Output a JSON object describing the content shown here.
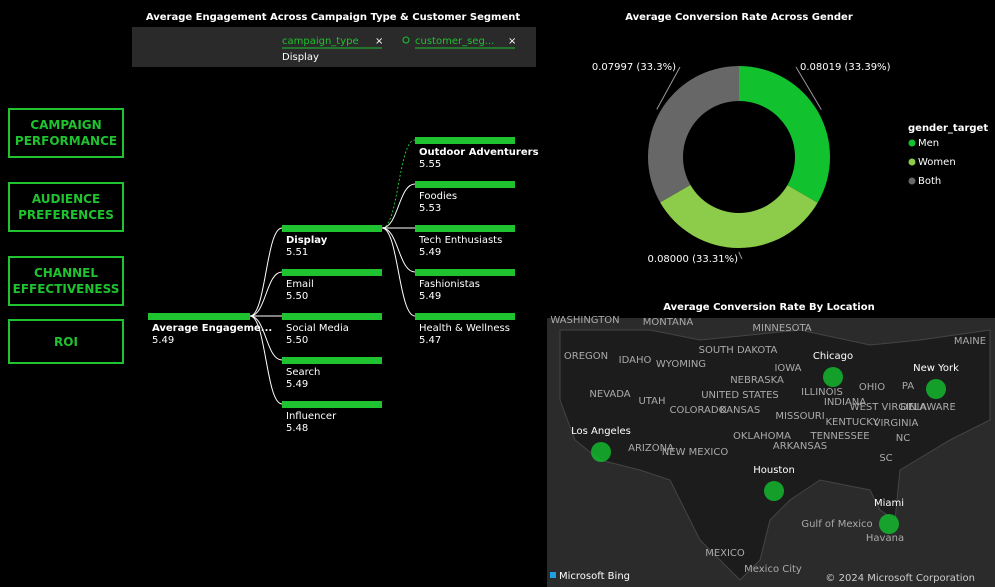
{
  "nav": [
    "CAMPAIGN PERFORMANCE",
    "AUDIENCE PREFERENCES",
    "CHANNEL EFFECTIVENESS",
    "ROI"
  ],
  "tree": {
    "title": "Average Engagement Across Campaign Type & Customer Segment",
    "filters": [
      {
        "field": "campaign_type",
        "value": "Display"
      },
      {
        "field": "customer_seg..."
      }
    ],
    "root": {
      "label": "Average Engageme...",
      "value": "5.49"
    },
    "level1": [
      {
        "label": "Display",
        "value": "5.51"
      },
      {
        "label": "Email",
        "value": "5.50"
      },
      {
        "label": "Social Media",
        "value": "5.50"
      },
      {
        "label": "Search",
        "value": "5.49"
      },
      {
        "label": "Influencer",
        "value": "5.48"
      }
    ],
    "level2": [
      {
        "label": "Outdoor Adventurers",
        "value": "5.55"
      },
      {
        "label": "Foodies",
        "value": "5.53"
      },
      {
        "label": "Tech Enthusiasts",
        "value": "5.49"
      },
      {
        "label": "Fashionistas",
        "value": "5.49"
      },
      {
        "label": "Health & Wellness",
        "value": "5.47"
      }
    ]
  },
  "chart_data": {
    "type": "pie",
    "title": "Average Conversion Rate Across Gender",
    "legend_title": "gender_target",
    "categories": [
      "Men",
      "Women",
      "Both"
    ],
    "values": [
      0.08019,
      0.08,
      0.07997
    ],
    "value_labels": [
      "0.08019 (33.39%)",
      "0.08000 (33.31%)",
      "0.07997 (33.3%)"
    ],
    "colors": [
      "#12c12e",
      "#8ccc4a",
      "#676767"
    ]
  },
  "map": {
    "title": "Average Conversion Rate By Location",
    "cities": [
      "Chicago",
      "New York",
      "Los Angeles",
      "Houston",
      "Miami"
    ],
    "labels": [
      "WASHINGTON",
      "MONTANA",
      "MINNESOTA",
      "OREGON",
      "IDAHO",
      "WYOMING",
      "SOUTH DAKOTA",
      "NEBRASKA",
      "IOWA",
      "NEVADA",
      "UTAH",
      "UNITED STATES",
      "COLORADO",
      "KANSAS",
      "MISSOURI",
      "ILLINOIS",
      "INDIANA",
      "OHIO",
      "PA",
      "WEST VIRGINIA",
      "DELAWARE",
      "KENTUCKY",
      "VIRGINIA",
      "TENNESSEE",
      "NC",
      "SC",
      "OKLAHOMA",
      "ARKANSAS",
      "ARIZONA",
      "NEW MEXICO",
      "MAINE",
      "Gulf of Mexico",
      "Havana",
      "MEXICO",
      "Mexico City"
    ],
    "attribution": "Microsoft Bing",
    "copyright": "© 2024 Microsoft Corporation"
  }
}
